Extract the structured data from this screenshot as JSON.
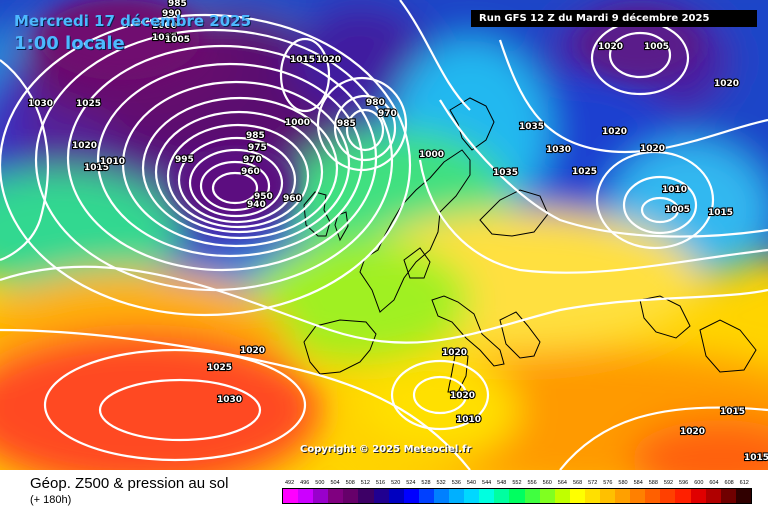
{
  "header": {
    "date": "Mercredi 17 décembre 2025",
    "time": "1:00 locale",
    "run": "Run GFS 12 Z du Mardi 9 décembre 2025"
  },
  "footer": {
    "title": "Géop. Z500 & pression au sol",
    "lead": "(+ 180h)",
    "copyright": "Copyright © 2025 Meteociel.fr"
  },
  "scale": {
    "values": [
      "492",
      "496",
      "500",
      "504",
      "508",
      "512",
      "516",
      "520",
      "524",
      "528",
      "532",
      "536",
      "540",
      "544",
      "548",
      "552",
      "556",
      "560",
      "564",
      "568",
      "572",
      "576",
      "580",
      "584",
      "588",
      "592",
      "596",
      "600",
      "604",
      "608",
      "612"
    ],
    "colors": [
      "#ff00ff",
      "#cc00ff",
      "#9900cc",
      "#800080",
      "#66006a",
      "#3d0066",
      "#200090",
      "#0000c0",
      "#0000ff",
      "#0040ff",
      "#0080ff",
      "#00b0ff",
      "#00d8ff",
      "#00ffe0",
      "#00ffa0",
      "#00ff60",
      "#40ff40",
      "#80ff20",
      "#c0ff00",
      "#ffff00",
      "#ffe000",
      "#ffc000",
      "#ffa000",
      "#ff8000",
      "#ff6000",
      "#ff4000",
      "#ff2000",
      "#e00000",
      "#b00000",
      "#700000",
      "#300000"
    ]
  },
  "isobar_labels": [
    {
      "text": "985"
    },
    {
      "text": "990"
    },
    {
      "text": "1000"
    },
    {
      "text": "1005"
    },
    {
      "text": "1030"
    },
    {
      "text": "1025"
    },
    {
      "text": "1020"
    },
    {
      "text": "1015"
    },
    {
      "text": "1010"
    },
    {
      "text": "995"
    },
    {
      "text": "1005"
    },
    {
      "text": "1020"
    },
    {
      "text": "1000"
    },
    {
      "text": "985"
    },
    {
      "text": "980"
    },
    {
      "text": "970"
    },
    {
      "text": "985"
    },
    {
      "text": "975"
    },
    {
      "text": "970"
    },
    {
      "text": "960"
    },
    {
      "text": "950"
    },
    {
      "text": "940"
    },
    {
      "text": "960"
    },
    {
      "text": "1000"
    },
    {
      "text": "1015"
    },
    {
      "text": "1005"
    },
    {
      "text": "1035"
    },
    {
      "text": "1030"
    },
    {
      "text": "1025"
    },
    {
      "text": "1035"
    },
    {
      "text": "1020"
    },
    {
      "text": "1020"
    },
    {
      "text": "1020"
    },
    {
      "text": "1020"
    },
    {
      "text": "1010"
    },
    {
      "text": "1005"
    },
    {
      "text": "1015"
    },
    {
      "text": "1020"
    },
    {
      "text": "1025"
    },
    {
      "text": "1030"
    },
    {
      "text": "1020"
    },
    {
      "text": "1010"
    },
    {
      "text": "1015"
    },
    {
      "text": "1020"
    },
    {
      "text": "1020"
    },
    {
      "text": "1015"
    }
  ]
}
